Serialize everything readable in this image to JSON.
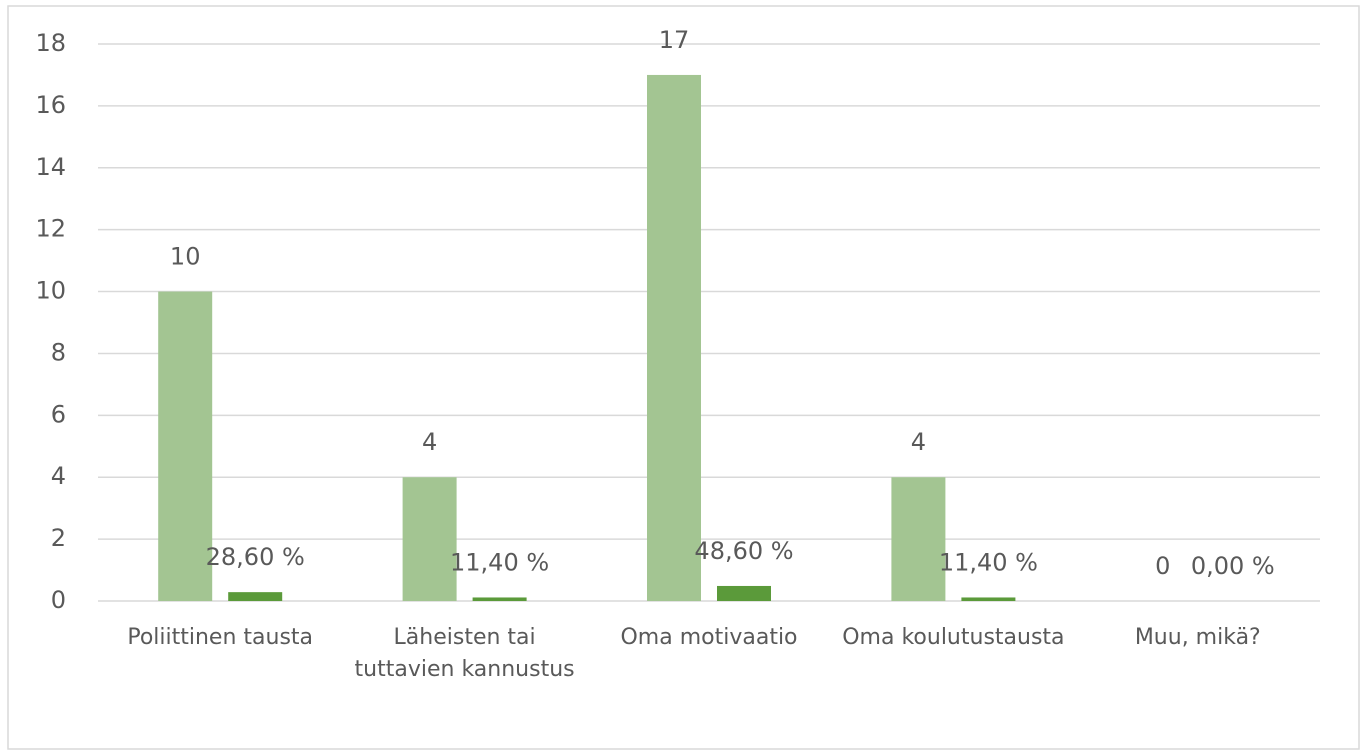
{
  "chart_data": {
    "type": "bar",
    "categories": [
      "Poliittinen tausta",
      "Läheisten tai tuttavien kannustus",
      "Oma motivaatio",
      "Oma koulutustausta",
      "Muu, mikä?"
    ],
    "series": [
      {
        "color": "#a3c592",
        "values": [
          10,
          4,
          17,
          4,
          0
        ]
      },
      {
        "color": "#5b9a3a",
        "values": [
          0.286,
          0.114,
          0.486,
          0.114,
          0
        ],
        "value_labels": [
          "28,60 %",
          "11,40 %",
          "48,60 %",
          "11,40 %",
          "0,00 %"
        ]
      }
    ],
    "ylim": [
      0,
      18
    ],
    "yticks": [
      0,
      2,
      4,
      6,
      8,
      10,
      12,
      14,
      16,
      18
    ],
    "grid": true
  }
}
